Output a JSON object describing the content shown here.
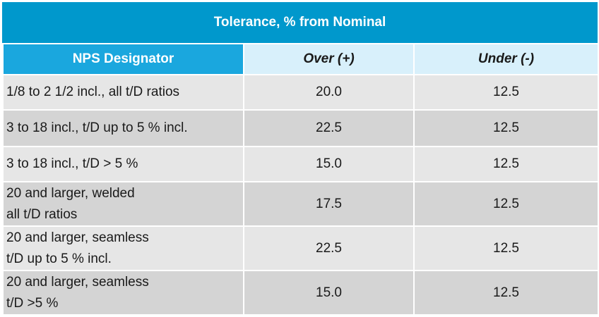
{
  "table": {
    "title": "Tolerance, % from Nominal",
    "headers": {
      "designator": "NPS Designator",
      "over": "Over (+)",
      "under": "Under (-)"
    },
    "rows": [
      {
        "designator": [
          "1/8 to 2 1/2 incl., all t/D ratios"
        ],
        "over": "20.0",
        "under": "12.5"
      },
      {
        "designator": [
          "3 to 18 incl., t/D up to 5 % incl."
        ],
        "over": "22.5",
        "under": "12.5"
      },
      {
        "designator": [
          "3 to 18 incl., t/D > 5 %"
        ],
        "over": "15.0",
        "under": "12.5"
      },
      {
        "designator": [
          "20 and larger, welded",
          "all t/D ratios"
        ],
        "over": "17.5",
        "under": "12.5"
      },
      {
        "designator": [
          "20 and larger, seamless",
          "t/D up to 5 % incl."
        ],
        "over": "22.5",
        "under": "12.5"
      },
      {
        "designator": [
          "20 and larger, seamless",
          "t/D >5 %"
        ],
        "over": "15.0",
        "under": "12.5"
      }
    ]
  },
  "colors": {
    "title_bg": "#0098cc",
    "header_bg": "#1aa7de",
    "subheader_bg": "#d8f0fb",
    "row_light": "#e6e6e6",
    "row_dark": "#d4d4d4"
  }
}
